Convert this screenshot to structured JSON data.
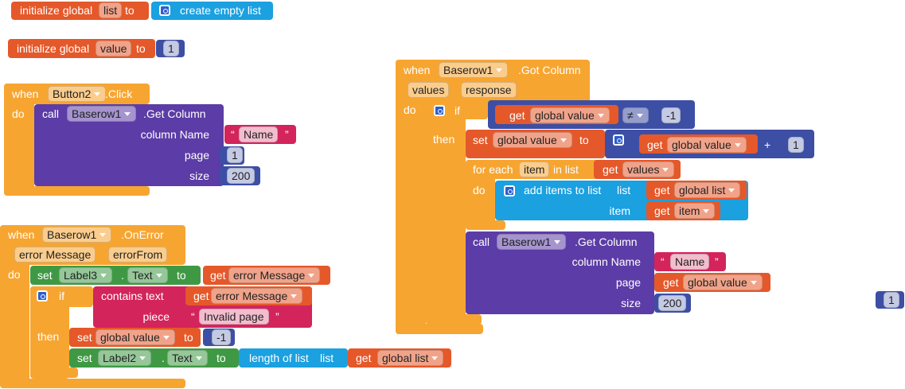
{
  "blocks": [
    {
      "texts": [
        "initialize global",
        "list",
        "to",
        "create empty list"
      ]
    },
    {
      "texts": [
        "initialize global",
        "value",
        "to",
        "1"
      ]
    },
    {
      "texts": [
        "when",
        "Button2",
        ".Click",
        "do",
        "call",
        "Baserow1",
        ".Get Column",
        "column Name",
        "“",
        "Name",
        "”",
        "page",
        "1",
        "size",
        "200"
      ]
    },
    {
      "texts": [
        "when",
        "Baserow1",
        ".OnError",
        "error Message",
        "errorFrom",
        "do",
        "set",
        "Label3",
        ".",
        "Text",
        "to",
        "get",
        "error Message",
        "if",
        "contains text",
        "get",
        "error Message",
        "piece",
        "“",
        "Invalid page",
        "”",
        "then",
        "set",
        "global value",
        "to",
        "-1",
        "set",
        "Label2",
        ".",
        "Text",
        "to",
        "length of list",
        "list",
        "get",
        "global list"
      ]
    },
    {
      "texts": [
        "when",
        "Baserow1",
        ".Got Column",
        "values",
        "response",
        "do",
        "if",
        "get",
        "global value",
        "≠",
        "-1",
        "then",
        "set",
        "global value",
        "to",
        "get",
        "global value",
        "+",
        "1",
        "for each",
        "item",
        "in list",
        "get",
        "values",
        "do",
        "add items to list",
        "list",
        "get",
        "global list",
        "item",
        "get",
        "item",
        "call",
        "Baserow1",
        ".Get Column",
        "column Name",
        "“",
        "Name",
        "”",
        "page",
        "get",
        "global value",
        "size",
        "200"
      ]
    },
    {
      "texts": [
        "1"
      ]
    }
  ]
}
